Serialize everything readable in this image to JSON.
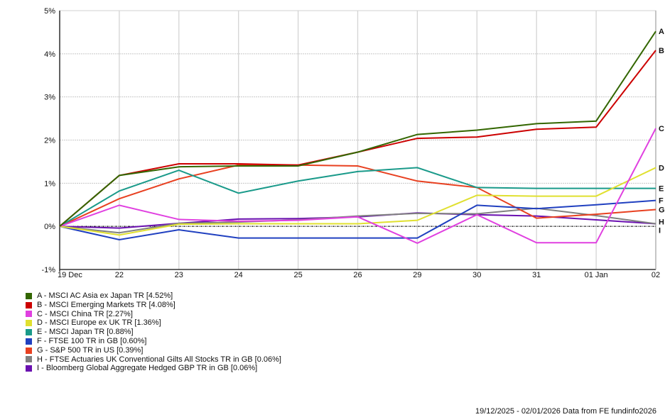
{
  "chart_data": {
    "type": "line",
    "categories": [
      "19 Dec",
      "22",
      "23",
      "24",
      "25",
      "26",
      "29",
      "30",
      "31",
      "01 Jan",
      "02"
    ],
    "ylim": [
      -1,
      5
    ],
    "yticks": [
      "-1%",
      "0%",
      "1%",
      "2%",
      "3%",
      "4%",
      "5%"
    ],
    "ytick_values": [
      -1,
      0,
      1,
      2,
      3,
      4,
      5
    ],
    "grid": true,
    "legend_placement": "bottom-left",
    "series": [
      {
        "letter": "A",
        "name": "A - MSCI AC Asia ex Japan TR [4.52%]",
        "color": "#336600",
        "values": [
          0,
          1.18,
          1.38,
          1.4,
          1.4,
          1.72,
          2.13,
          2.23,
          2.38,
          2.44,
          4.52
        ]
      },
      {
        "letter": "B",
        "name": "B - MSCI Emerging Markets TR [4.08%]",
        "color": "#cc0000",
        "values": [
          0,
          1.18,
          1.45,
          1.45,
          1.42,
          1.72,
          2.04,
          2.07,
          2.25,
          2.3,
          4.08
        ]
      },
      {
        "letter": "C",
        "name": "C - MSCI China TR [2.27%]",
        "color": "#e040e0",
        "values": [
          0,
          0.49,
          0.16,
          0.12,
          0.14,
          0.22,
          -0.39,
          0.27,
          -0.38,
          -0.38,
          2.27
        ]
      },
      {
        "letter": "D",
        "name": "D - MSCI Europe ex UK TR [1.36%]",
        "color": "#e0e030",
        "values": [
          0,
          -0.2,
          0.05,
          0.06,
          0.06,
          0.06,
          0.14,
          0.72,
          0.7,
          0.7,
          1.36
        ]
      },
      {
        "letter": "E",
        "name": "E - MSCI Japan TR [0.88%]",
        "color": "#1a9a8a",
        "values": [
          0,
          0.82,
          1.3,
          0.77,
          1.05,
          1.27,
          1.36,
          0.9,
          0.88,
          0.88,
          0.88
        ]
      },
      {
        "letter": "F",
        "name": "F - FTSE 100 TR in GB [0.60%]",
        "color": "#2040c0",
        "values": [
          0,
          -0.31,
          -0.08,
          -0.27,
          -0.27,
          -0.27,
          -0.27,
          0.49,
          0.41,
          0.5,
          0.6
        ]
      },
      {
        "letter": "G",
        "name": "G - S&P 500 TR in US [0.39%]",
        "color": "#e84020",
        "values": [
          0,
          0.64,
          1.1,
          1.42,
          1.42,
          1.4,
          1.05,
          0.9,
          0.19,
          0.28,
          0.39
        ]
      },
      {
        "letter": "H",
        "name": "H - FTSE Actuaries UK Conventional Gilts All Stocks TR in GB [0.06%]",
        "color": "#808080",
        "values": [
          0,
          -0.15,
          0.07,
          0.1,
          0.15,
          0.24,
          0.3,
          0.29,
          0.42,
          0.25,
          0.06
        ]
      },
      {
        "letter": "I",
        "name": "I - Bloomberg Global Aggregate Hedged GBP TR in GB [0.06%]",
        "color": "#6a10b0",
        "values": [
          0,
          -0.04,
          0.07,
          0.17,
          0.18,
          0.22,
          0.31,
          0.27,
          0.24,
          0.15,
          0.06
        ]
      }
    ]
  },
  "footer": "19/12/2025 - 02/01/2026 Data from FE fundinfo2026"
}
